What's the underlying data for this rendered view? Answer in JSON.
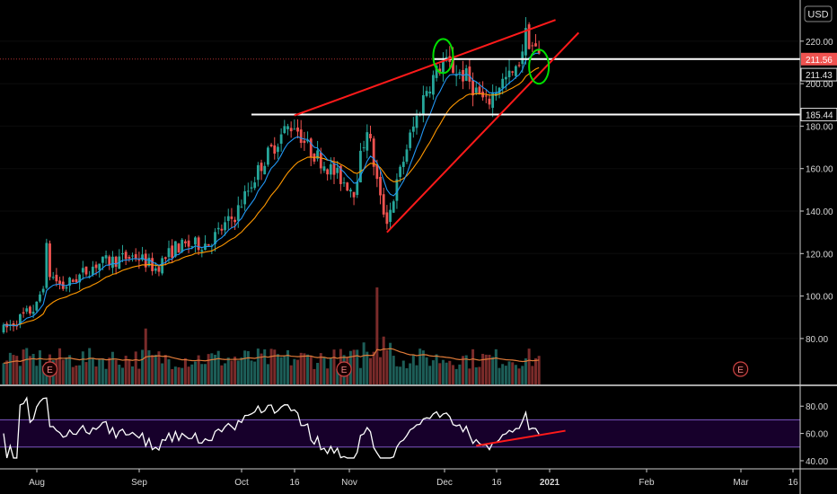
{
  "chart_data": {
    "type": "candlestick",
    "currency_label": "USD",
    "price_axis": {
      "range": [
        66,
        236
      ],
      "ticks": [
        "220.00",
        "200.00",
        "180.00",
        "160.00",
        "140.00",
        "120.00",
        "100.00",
        "80.00"
      ]
    },
    "time_axis": {
      "labels": [
        "Aug",
        "Sep",
        "Oct",
        "16",
        "Nov",
        "Dec",
        "16",
        "2021",
        "Feb",
        "Mar",
        "16"
      ],
      "bold_labels": [
        "2021"
      ]
    },
    "price_tags": [
      {
        "value": 211.56,
        "label": "211.56",
        "color": "#ef5350"
      },
      {
        "value": 211.43,
        "label": "211.43",
        "color": "#e0e0e0"
      },
      {
        "value": 185.44,
        "label": "185.44",
        "color": "#e0e0e0"
      }
    ],
    "horizontal_lines": [
      {
        "value": 211.56,
        "from_bar": 130
      },
      {
        "value": 185.44,
        "from_bar": 75
      }
    ],
    "trend_lines": [
      {
        "from": [
          88,
          185
        ],
        "to": [
          167,
          230
        ]
      },
      {
        "from": [
          116,
          130
        ],
        "to": [
          174,
          224
        ]
      }
    ],
    "circles": [
      {
        "bar": 133,
        "value": 213
      },
      {
        "bar": 162,
        "value": 208
      }
    ],
    "earnings_markers": [
      {
        "bar": 14
      },
      {
        "bar": 103
      },
      {
        "bar": 223
      }
    ],
    "rsi": {
      "range": [
        38,
        92
      ],
      "ticks": [
        "80.00",
        "60.00",
        "40.00"
      ],
      "band": [
        50,
        70
      ],
      "trend_line": {
        "from": [
          143,
          51
        ],
        "to": [
          170,
          62
        ]
      }
    },
    "bars_total": 163,
    "seed": 7
  },
  "colors": {
    "up": "#26a69a",
    "down": "#ef5350",
    "ema_fast": "#2196f3",
    "ema_slow": "#ff9800",
    "annotation_red": "#ff1a1a",
    "annotation_green": "#00e000",
    "rsi_line": "#ffffff",
    "rsi_band": "#7e57c2"
  }
}
